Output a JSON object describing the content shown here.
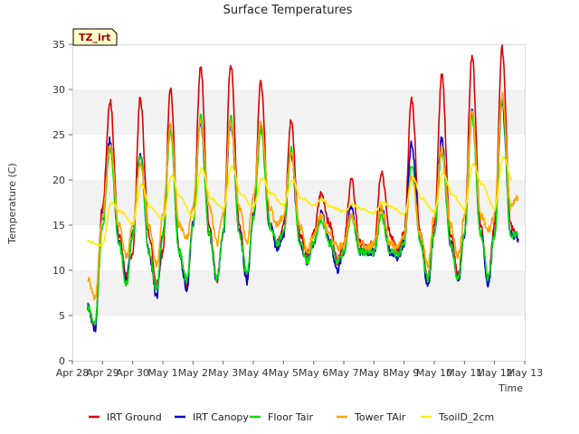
{
  "chart_data": {
    "type": "line",
    "title": "Surface Temperatures",
    "xlabel": "Time",
    "ylabel": "Temperature (C)",
    "annotation": "TZ_irt",
    "ylim": [
      0,
      35
    ],
    "yticks": [
      0,
      5,
      10,
      15,
      20,
      25,
      30,
      35
    ],
    "x_ticks": [
      "Apr 28",
      "Apr 29",
      "Apr 30",
      "May 1",
      "May 2",
      "May 3",
      "May 4",
      "May 5",
      "May 6",
      "May 7",
      "May 8",
      "May 9",
      "May 10",
      "May 11",
      "May 12",
      "May 13"
    ],
    "grid": "horizontal bands",
    "legend_position": "bottom",
    "series": [
      {
        "name": "IRT Ground",
        "color": "#dd0000",
        "x": [
          "Apr 28 12:00",
          "Apr 28 18:00",
          "Apr 29 00:00",
          "Apr 29 06:00",
          "Apr 29 13:00",
          "Apr 29 19:00",
          "Apr 30 00:00",
          "Apr 30 06:00",
          "Apr 30 13:00",
          "Apr 30 19:00",
          "May 1 00:00",
          "May 1 06:00",
          "May 1 13:00",
          "May 1 19:00",
          "May 2 00:00",
          "May 2 06:00",
          "May 2 13:00",
          "May 2 19:00",
          "May 3 00:00",
          "May 3 06:00",
          "May 3 13:00",
          "May 3 19:00",
          "May 4 00:00",
          "May 4 06:00",
          "May 4 13:00",
          "May 4 19:00",
          "May 5 00:00",
          "May 5 06:00",
          "May 5 13:00",
          "May 5 19:00",
          "May 6 00:00",
          "May 6 06:00",
          "May 6 13:00",
          "May 6 19:00",
          "May 7 00:00",
          "May 7 06:00",
          "May 7 13:00",
          "May 7 19:00",
          "May 8 00:00",
          "May 8 06:00",
          "May 8 13:00",
          "May 8 19:00",
          "May 9 00:00",
          "May 9 06:00",
          "May 9 13:00",
          "May 9 19:00",
          "May 10 00:00",
          "May 10 06:00",
          "May 10 13:00",
          "May 10 19:00",
          "May 11 00:00",
          "May 11 06:00",
          "May 11 13:00",
          "May 11 19:00",
          "May 12 00:00",
          "May 12 06:00",
          "May 12 13:00",
          "May 12 19:00"
        ],
        "values": [
          6,
          3.8,
          17,
          28.7,
          14,
          9.5,
          12,
          29,
          14,
          8.5,
          12,
          30.3,
          12,
          8.2,
          15,
          32.5,
          15,
          9,
          14,
          32.8,
          15,
          9,
          16,
          31,
          15,
          13,
          15,
          26.5,
          14,
          12,
          14,
          18.5,
          15,
          11,
          13,
          20,
          13,
          12.5,
          13,
          21,
          14,
          12,
          14,
          29,
          14,
          9,
          15,
          31.5,
          14,
          9.5,
          14,
          33.8,
          15,
          9,
          15,
          34.5,
          15,
          13.5
        ]
      },
      {
        "name": "IRT Canopy",
        "color": "#0000cc",
        "x": [
          "Apr 28 12:00",
          "Apr 28 18:00",
          "Apr 29 00:00",
          "Apr 29 06:00",
          "Apr 29 13:00",
          "Apr 29 19:00",
          "Apr 30 00:00",
          "Apr 30 06:00",
          "Apr 30 13:00",
          "Apr 30 19:00",
          "May 1 00:00",
          "May 1 06:00",
          "May 1 13:00",
          "May 1 19:00",
          "May 2 00:00",
          "May 2 06:00",
          "May 2 13:00",
          "May 2 19:00",
          "May 3 00:00",
          "May 3 06:00",
          "May 3 13:00",
          "May 3 19:00",
          "May 4 00:00",
          "May 4 06:00",
          "May 4 13:00",
          "May 4 19:00",
          "May 5 00:00",
          "May 5 06:00",
          "May 5 13:00",
          "May 5 19:00",
          "May 6 00:00",
          "May 6 06:00",
          "May 6 13:00",
          "May 6 19:00",
          "May 7 00:00",
          "May 7 06:00",
          "May 7 13:00",
          "May 7 19:00",
          "May 8 00:00",
          "May 8 06:00",
          "May 8 13:00",
          "May 8 19:00",
          "May 9 00:00",
          "May 9 06:00",
          "May 9 13:00",
          "May 9 19:00",
          "May 10 00:00",
          "May 10 06:00",
          "May 10 13:00",
          "May 10 19:00",
          "May 11 00:00",
          "May 11 06:00",
          "May 11 13:00",
          "May 11 19:00",
          "May 12 00:00",
          "May 12 06:00",
          "May 12 13:00",
          "May 12 19:00"
        ],
        "values": [
          6,
          3.5,
          16,
          24.5,
          13,
          8.8,
          14,
          23,
          12,
          7,
          14,
          26,
          12,
          8,
          15,
          26.5,
          14,
          8.8,
          14,
          26.5,
          14,
          8.8,
          16,
          26,
          15,
          12.5,
          14,
          23,
          13,
          11,
          13,
          16.5,
          13,
          10,
          12,
          17,
          12,
          12,
          12,
          17,
          12,
          11.5,
          13,
          24,
          13,
          8.3,
          14,
          24.5,
          13,
          8.8,
          14,
          27.5,
          14,
          8.5,
          14,
          28.5,
          14,
          13.5
        ]
      },
      {
        "name": "Floor Tair",
        "color": "#00dd00",
        "x": [
          "Apr 28 12:00",
          "Apr 28 18:00",
          "Apr 29 00:00",
          "Apr 29 06:00",
          "Apr 29 13:00",
          "Apr 29 19:00",
          "Apr 30 00:00",
          "Apr 30 06:00",
          "Apr 30 13:00",
          "Apr 30 19:00",
          "May 1 00:00",
          "May 1 06:00",
          "May 1 13:00",
          "May 1 19:00",
          "May 2 00:00",
          "May 2 06:00",
          "May 2 13:00",
          "May 2 19:00",
          "May 3 00:00",
          "May 3 06:00",
          "May 3 13:00",
          "May 3 19:00",
          "May 4 00:00",
          "May 4 06:00",
          "May 4 13:00",
          "May 4 19:00",
          "May 5 00:00",
          "May 5 06:00",
          "May 5 13:00",
          "May 5 19:00",
          "May 6 00:00",
          "May 6 06:00",
          "May 6 13:00",
          "May 6 19:00",
          "May 7 00:00",
          "May 7 06:00",
          "May 7 13:00",
          "May 7 19:00",
          "May 8 00:00",
          "May 8 06:00",
          "May 8 13:00",
          "May 8 19:00",
          "May 9 00:00",
          "May 9 06:00",
          "May 9 13:00",
          "May 9 19:00",
          "May 10 00:00",
          "May 10 06:00",
          "May 10 13:00",
          "May 10 19:00",
          "May 11 00:00",
          "May 11 06:00",
          "May 11 13:00",
          "May 11 19:00",
          "May 12 00:00",
          "May 12 06:00",
          "May 12 13:00",
          "May 12 19:00"
        ],
        "values": [
          6,
          4,
          15,
          23.5,
          13,
          8.5,
          14,
          22.5,
          12,
          8,
          14,
          25.5,
          12,
          9,
          15,
          27,
          14,
          9,
          14,
          27,
          14,
          9.5,
          16,
          25.5,
          15,
          13,
          14,
          23.5,
          13,
          11,
          13,
          15.5,
          13,
          11,
          12,
          16,
          12,
          12,
          12,
          16,
          12,
          11.8,
          13,
          21.5,
          13,
          9,
          14,
          23,
          13,
          9,
          14,
          27,
          14,
          9.2,
          14,
          29,
          14,
          14
        ]
      },
      {
        "name": "Tower TAir",
        "color": "#ffa500",
        "x": [
          "Apr 28 12:00",
          "Apr 28 18:00",
          "Apr 29 00:00",
          "Apr 29 06:00",
          "Apr 29 13:00",
          "Apr 29 19:00",
          "Apr 30 00:00",
          "Apr 30 06:00",
          "Apr 30 13:00",
          "Apr 30 19:00",
          "May 1 00:00",
          "May 1 06:00",
          "May 1 13:00",
          "May 1 19:00",
          "May 2 00:00",
          "May 2 06:00",
          "May 2 13:00",
          "May 2 19:00",
          "May 3 00:00",
          "May 3 06:00",
          "May 3 13:00",
          "May 3 19:00",
          "May 4 00:00",
          "May 4 06:00",
          "May 4 13:00",
          "May 4 19:00",
          "May 5 00:00",
          "May 5 06:00",
          "May 5 13:00",
          "May 5 19:00",
          "May 6 00:00",
          "May 6 06:00",
          "May 6 13:00",
          "May 6 19:00",
          "May 7 00:00",
          "May 7 06:00",
          "May 7 13:00",
          "May 7 19:00",
          "May 8 00:00",
          "May 8 06:00",
          "May 8 13:00",
          "May 8 19:00",
          "May 9 00:00",
          "May 9 06:00",
          "May 9 13:00",
          "May 9 19:00",
          "May 10 00:00",
          "May 10 06:00",
          "May 10 13:00",
          "May 10 19:00",
          "May 11 00:00",
          "May 11 06:00",
          "May 11 13:00",
          "May 11 19:00",
          "May 12 00:00",
          "May 12 06:00",
          "May 12 13:00",
          "May 12 19:00"
        ],
        "values": [
          9,
          7,
          16,
          24,
          15,
          11.5,
          15,
          22,
          15,
          10.5,
          16,
          26,
          15,
          13.5,
          17,
          26.5,
          17,
          13,
          16,
          26.5,
          17,
          13,
          18,
          26.5,
          17,
          15,
          16,
          23,
          15,
          12,
          14,
          16,
          14,
          12.5,
          13,
          16,
          13,
          12.5,
          13,
          17,
          13,
          12.5,
          14,
          20.5,
          14,
          10.5,
          16,
          23.5,
          15,
          11.5,
          16,
          27.5,
          16,
          14.5,
          16,
          29.5,
          17,
          18
        ]
      },
      {
        "name": "TsoilD_2cm",
        "color": "#ffee00",
        "x": [
          "Apr 28 12:00",
          "Apr 29 00:00",
          "Apr 29 07:00",
          "Apr 29 14:00",
          "Apr 30 00:00",
          "Apr 30 07:00",
          "Apr 30 14:00",
          "May 1 00:00",
          "May 1 07:00",
          "May 1 14:00",
          "May 2 00:00",
          "May 2 07:00",
          "May 2 14:00",
          "May 3 00:00",
          "May 3 07:00",
          "May 3 14:00",
          "May 4 00:00",
          "May 4 07:00",
          "May 4 14:00",
          "May 5 00:00",
          "May 5 07:00",
          "May 5 14:00",
          "May 6 00:00",
          "May 6 07:00",
          "May 6 14:00",
          "May 7 00:00",
          "May 7 07:00",
          "May 7 14:00",
          "May 8 00:00",
          "May 8 07:00",
          "May 8 14:00",
          "May 9 00:00",
          "May 9 07:00",
          "May 9 14:00",
          "May 10 00:00",
          "May 10 07:00",
          "May 10 14:00",
          "May 11 00:00",
          "May 11 07:00",
          "May 11 14:00",
          "May 12 00:00",
          "May 12 07:00",
          "May 12 14:00"
        ],
        "values": [
          13.2,
          12.8,
          17.5,
          16.5,
          15.2,
          19.5,
          17,
          15.7,
          20.5,
          18,
          16,
          21.3,
          18,
          16.8,
          21.5,
          18.5,
          17,
          20.2,
          18.5,
          17.2,
          20,
          18,
          17.2,
          17.8,
          17,
          16.5,
          17.3,
          16.8,
          16.3,
          17.5,
          17,
          16.2,
          20.2,
          18,
          16.5,
          20.8,
          18.5,
          16.8,
          21.8,
          19.5,
          16.8,
          22.5,
          20
        ]
      }
    ]
  }
}
